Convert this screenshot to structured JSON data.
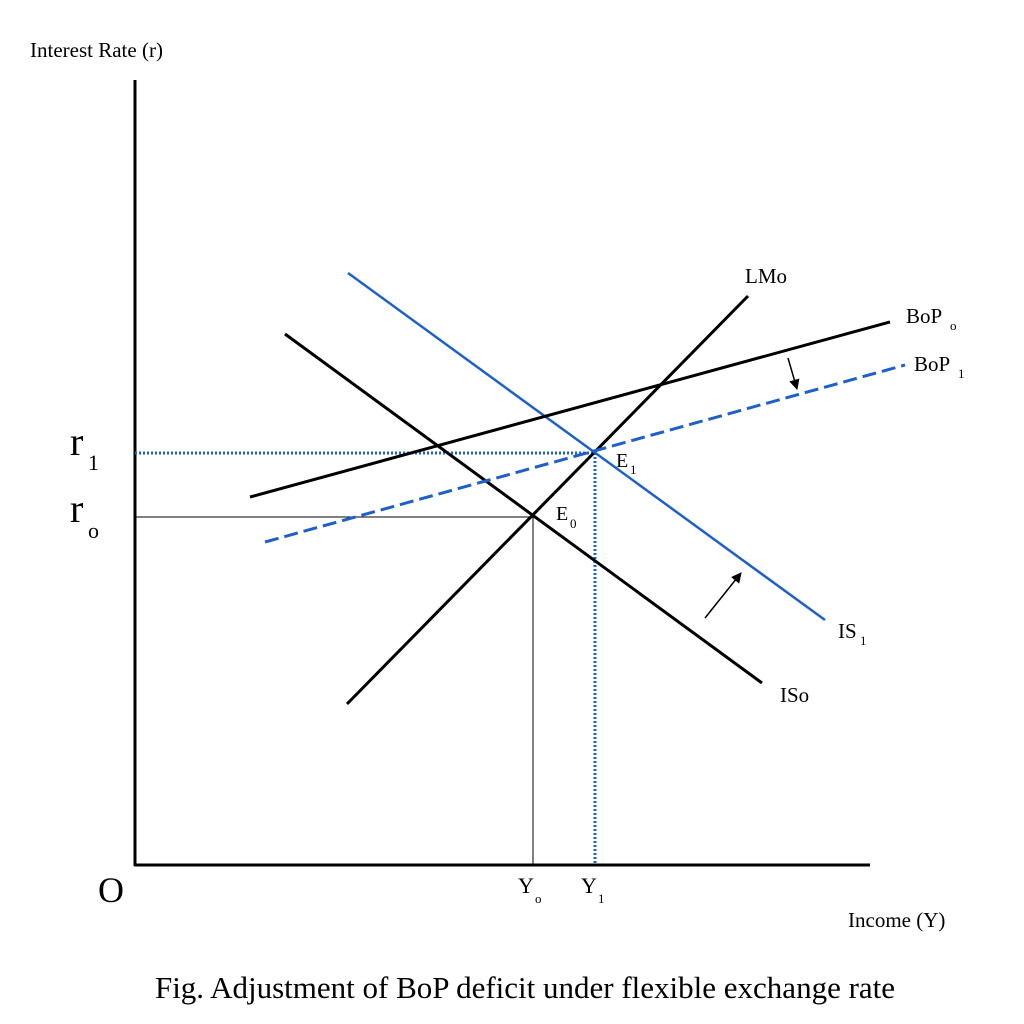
{
  "axes": {
    "y_label": "Interest Rate (r)",
    "x_label": "Income (Y)",
    "origin": "O"
  },
  "levels": [
    {
      "base": "r",
      "sub": "1"
    },
    {
      "base": "r",
      "sub": "o"
    }
  ],
  "outputs": [
    {
      "base": "Y",
      "sub": "o"
    },
    {
      "base": "Y",
      "sub": "1"
    }
  ],
  "curves": [
    {
      "base": "LMo"
    },
    {
      "base": "BoP",
      "sub": "o"
    },
    {
      "base": "BoP",
      "sub": "1"
    },
    {
      "base": "IS",
      "sub": "1"
    },
    {
      "base": "ISo"
    }
  ],
  "points": [
    {
      "base": "E",
      "sub": "0"
    },
    {
      "base": "E",
      "sub": "1"
    }
  ],
  "caption": "Fig. Adjustment of BoP deficit under flexible exchange rate"
}
